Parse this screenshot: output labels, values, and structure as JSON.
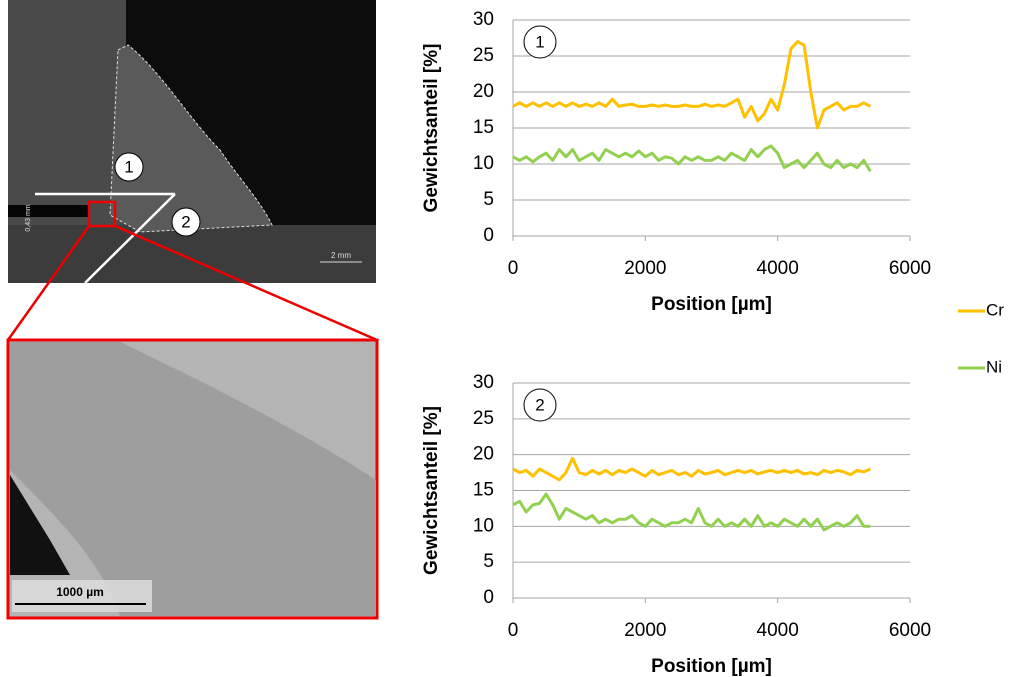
{
  "micrograph": {
    "markers": [
      "1",
      "2"
    ],
    "scale_overview": "2 mm",
    "thickness": "0,43 mm",
    "scale_detail": "1000 µm"
  },
  "chart_data": [
    {
      "type": "line",
      "annotation": "1",
      "x_label": "Position [µm]",
      "y_label": "Gewichtsanteil [%]",
      "x": [
        0,
        100,
        200,
        300,
        400,
        500,
        600,
        700,
        800,
        900,
        1000,
        1100,
        1200,
        1300,
        1400,
        1500,
        1600,
        1700,
        1800,
        1900,
        2000,
        2100,
        2200,
        2300,
        2400,
        2500,
        2600,
        2700,
        2800,
        2900,
        3000,
        3100,
        3200,
        3300,
        3400,
        3500,
        3600,
        3700,
        3800,
        3900,
        4000,
        4100,
        4200,
        4300,
        4400,
        4500,
        4600,
        4700,
        4800,
        4900,
        5000,
        5100,
        5200,
        5300,
        5400
      ],
      "series": [
        {
          "name": "Cr",
          "color": "#ffc000",
          "values": [
            18,
            18.5,
            18,
            18.5,
            18,
            18.5,
            18,
            18.5,
            18,
            18.5,
            18,
            18.3,
            18,
            18.5,
            18,
            19,
            18,
            18.2,
            18.3,
            18,
            18,
            18.2,
            18,
            18.2,
            18,
            18,
            18.2,
            18,
            18,
            18.3,
            18,
            18.2,
            18,
            18.5,
            19,
            16.5,
            18,
            16,
            17,
            19,
            17.5,
            21,
            26,
            27,
            26.5,
            20,
            15,
            17.5,
            18,
            18.5,
            17.5,
            18,
            18,
            18.5,
            18
          ]
        },
        {
          "name": "Ni",
          "color": "#92d050",
          "values": [
            11,
            10.5,
            11,
            10.3,
            11,
            11.5,
            10.5,
            12,
            11,
            12,
            10.5,
            11,
            11.5,
            10.5,
            12,
            11.5,
            11,
            11.5,
            11,
            11.8,
            11,
            11.5,
            10.5,
            11,
            10.8,
            10,
            11,
            10.5,
            11,
            10.5,
            10.5,
            11,
            10.5,
            11.5,
            11,
            10.5,
            12,
            11,
            12,
            12.5,
            11.5,
            9.5,
            10,
            10.5,
            9.5,
            10.5,
            11.5,
            10,
            9.5,
            10.5,
            9.5,
            10,
            9.5,
            10.5,
            9
          ]
        }
      ],
      "xlim": [
        0,
        6000
      ],
      "xticks": [
        0,
        2000,
        4000,
        6000
      ],
      "ylim": [
        0,
        30
      ],
      "yticks": [
        0,
        5,
        10,
        15,
        20,
        25,
        30
      ],
      "grid": true
    },
    {
      "type": "line",
      "annotation": "2",
      "x_label": "Position [µm]",
      "y_label": "Gewichtsanteil [%]",
      "x": [
        0,
        100,
        200,
        300,
        400,
        500,
        600,
        700,
        800,
        900,
        1000,
        1100,
        1200,
        1300,
        1400,
        1500,
        1600,
        1700,
        1800,
        1900,
        2000,
        2100,
        2200,
        2300,
        2400,
        2500,
        2600,
        2700,
        2800,
        2900,
        3000,
        3100,
        3200,
        3300,
        3400,
        3500,
        3600,
        3700,
        3800,
        3900,
        4000,
        4100,
        4200,
        4300,
        4400,
        4500,
        4600,
        4700,
        4800,
        4900,
        5000,
        5100,
        5200,
        5300,
        5400
      ],
      "series": [
        {
          "color": "#ffc000",
          "values": [
            18,
            17.5,
            17.8,
            17,
            18,
            17.5,
            17,
            16.5,
            17.5,
            19.5,
            17.5,
            17.2,
            17.8,
            17.3,
            17.8,
            17.2,
            17.8,
            17.5,
            18,
            17.5,
            17,
            17.8,
            17.2,
            17.5,
            17.8,
            17.2,
            17.5,
            17,
            17.8,
            17.3,
            17.5,
            17.8,
            17.2,
            17.5,
            17.8,
            17.5,
            17.8,
            17.3,
            17.6,
            17.8,
            17.5,
            17.8,
            17.5,
            17.8,
            17.3,
            17.5,
            17.2,
            17.8,
            17.5,
            17.8,
            17.6,
            17.2,
            17.8,
            17.6,
            18
          ]
        },
        {
          "color": "#92d050",
          "values": [
            13,
            13.5,
            12,
            13,
            13.2,
            14.5,
            13,
            11,
            12.5,
            12,
            11.5,
            11,
            11.5,
            10.5,
            11,
            10.5,
            11,
            11,
            11.5,
            10.5,
            10,
            11,
            10.5,
            10,
            10.5,
            10.5,
            11,
            10.5,
            12.5,
            10.5,
            10,
            11,
            10,
            10.5,
            10,
            11,
            10,
            11.5,
            10,
            10.5,
            10,
            11,
            10.5,
            10,
            11,
            10,
            11,
            9.5,
            10,
            10.5,
            10,
            10.5,
            11.5,
            10,
            10
          ]
        }
      ],
      "xlim": [
        0,
        6000
      ],
      "xticks": [
        0,
        2000,
        4000,
        6000
      ],
      "ylim": [
        0,
        30
      ],
      "yticks": [
        0,
        5,
        10,
        15,
        20,
        25,
        30
      ],
      "grid": true
    }
  ]
}
